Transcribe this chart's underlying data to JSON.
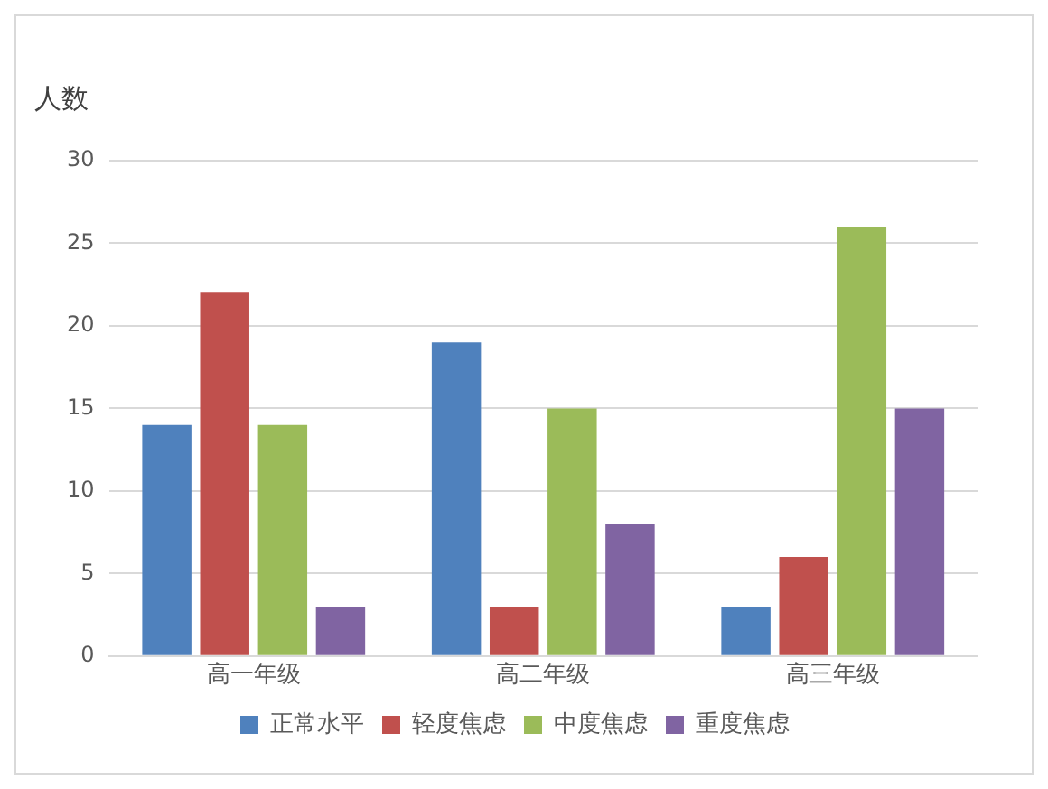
{
  "chart_data": {
    "type": "bar",
    "ylabel": "人数",
    "categories": [
      "高一年级",
      "高二年级",
      "高三年级"
    ],
    "series": [
      {
        "name": "正常水平",
        "color": "#4f81bd",
        "values": [
          14,
          19,
          3
        ]
      },
      {
        "name": "轻度焦虑",
        "color": "#c0504d",
        "values": [
          22,
          3,
          6
        ]
      },
      {
        "name": "中度焦虑",
        "color": "#9bbb59",
        "values": [
          14,
          15,
          26
        ]
      },
      {
        "name": "重度焦虑",
        "color": "#8064a2",
        "values": [
          3,
          8,
          15
        ]
      }
    ],
    "ylim": [
      0,
      30
    ],
    "yticks": [
      0,
      5,
      10,
      15,
      20,
      25,
      30
    ],
    "grid": "y",
    "legend": "bottom"
  }
}
